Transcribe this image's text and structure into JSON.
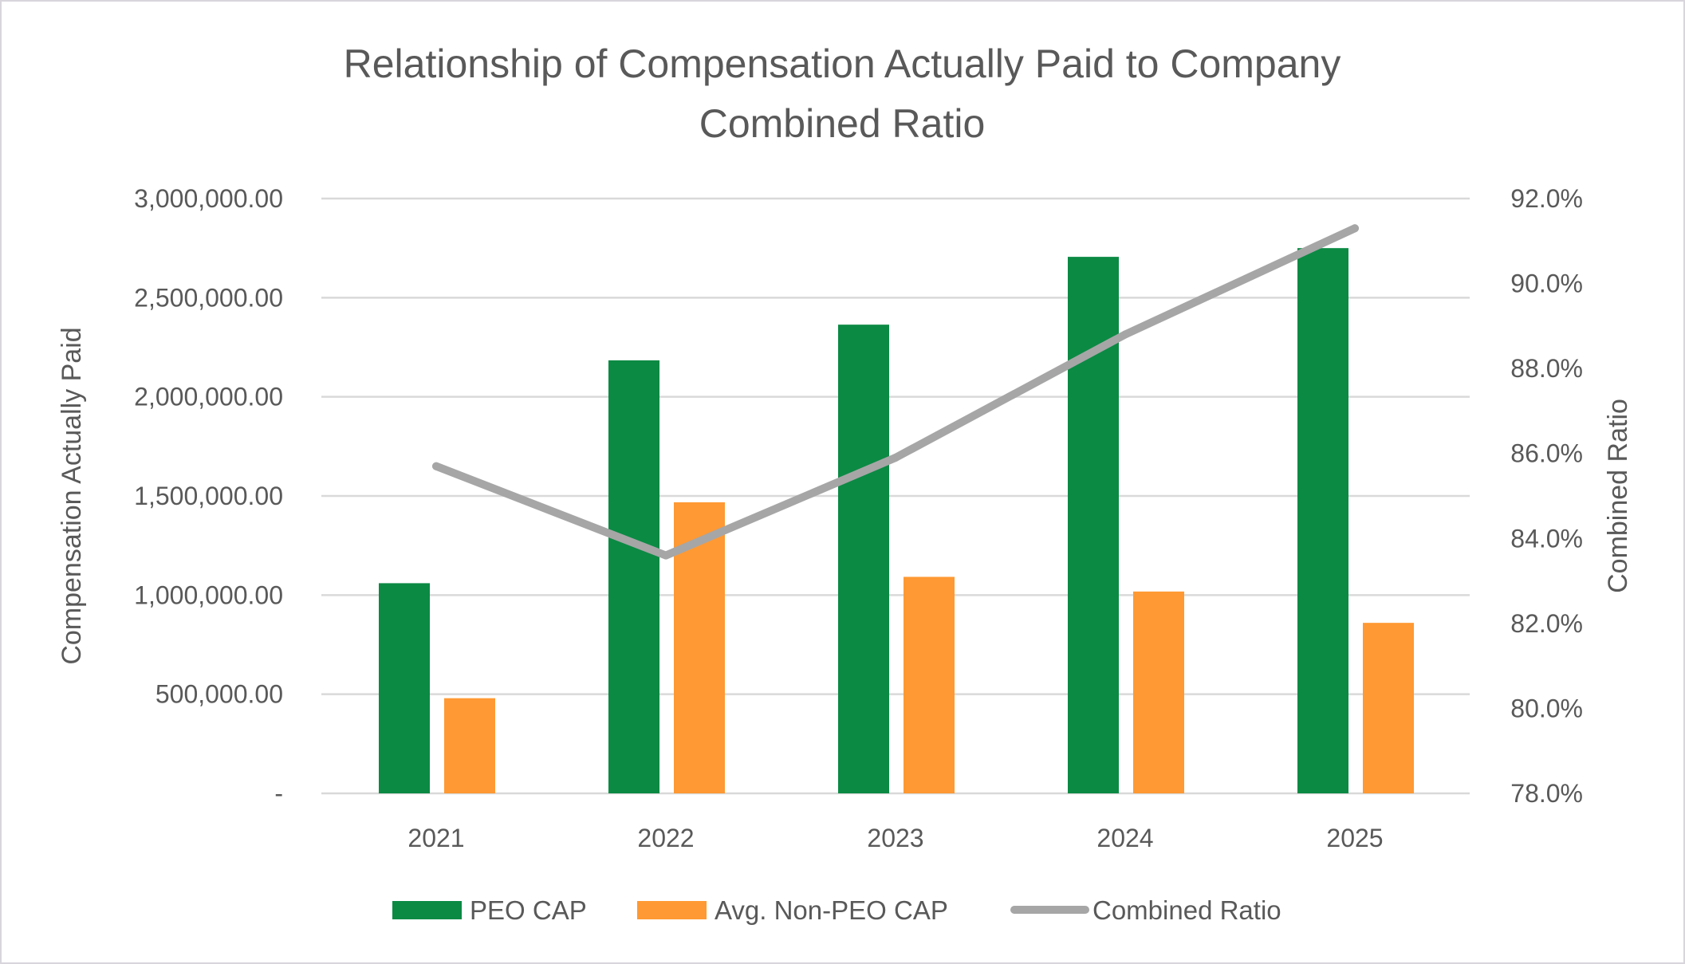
{
  "chart_data": {
    "type": "bar",
    "title": [
      "Relationship of Compensation Actually Paid to Company",
      "Combined Ratio"
    ],
    "categories": [
      "2021",
      "2022",
      "2023",
      "2024",
      "2025"
    ],
    "series": [
      {
        "name": "PEO CAP",
        "type": "bar",
        "axis": "left",
        "color": "#0B8A44",
        "values": [
          1060000,
          2184000,
          2364000,
          2706000,
          2750000
        ]
      },
      {
        "name": "Avg. Non-PEO CAP",
        "type": "bar",
        "axis": "left",
        "color": "#FF9933",
        "values": [
          480000,
          1468000,
          1092000,
          1018000,
          860000
        ]
      },
      {
        "name": "Combined Ratio",
        "type": "line",
        "axis": "right",
        "color": "#A6A6A6",
        "values": [
          85.7,
          83.6,
          85.9,
          88.8,
          91.3
        ]
      }
    ],
    "y_left": {
      "label": "Compensation Actually Paid",
      "range": [
        0,
        3000000
      ],
      "ticks": [
        0,
        500000,
        1000000,
        1500000,
        2000000,
        2500000,
        3000000
      ],
      "tick_labels": [
        "-",
        "500,000.00",
        "1,000,000.00",
        "1,500,000.00",
        "2,000,000.00",
        "2,500,000.00",
        "3,000,000.00"
      ]
    },
    "y_right": {
      "label": "Combined Ratio",
      "unit": "%",
      "range": [
        78,
        92
      ],
      "ticks": [
        78,
        80,
        82,
        84,
        86,
        88,
        90,
        92
      ],
      "tick_labels": [
        "78.0%",
        "80.0%",
        "82.0%",
        "84.0%",
        "86.0%",
        "88.0%",
        "90.0%",
        "92.0%"
      ]
    },
    "xlabel": "",
    "grid": true,
    "legend": {
      "placement": "bottom",
      "entries": [
        "PEO CAP",
        "Avg. Non-PEO CAP",
        "Combined Ratio"
      ]
    }
  }
}
